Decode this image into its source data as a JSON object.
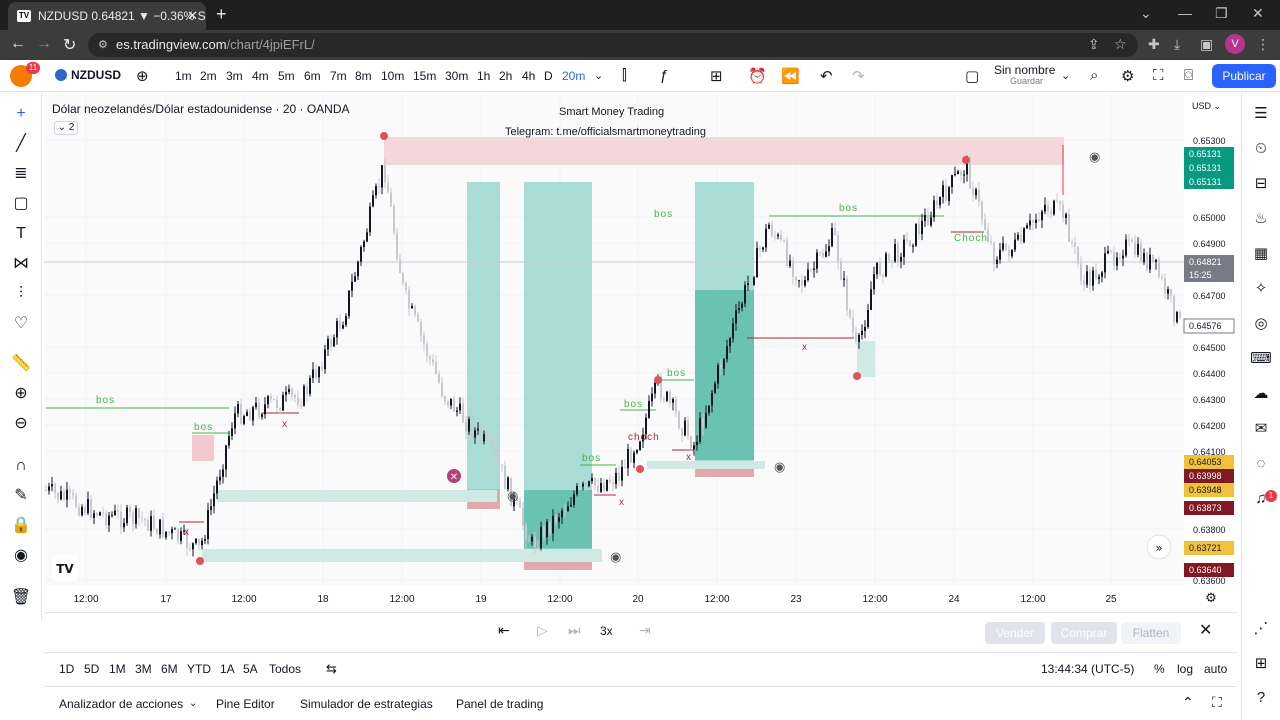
{
  "browser": {
    "tab_title": "NZDUSD 0.64821 ▼ −0.36% Sin",
    "url_host": "es.tradingview.com",
    "url_path": "/chart/4jpiEFrL/",
    "avatar": "V"
  },
  "toolbar": {
    "alerts_badge": "11",
    "symbol": "NZDUSD",
    "timeframes": [
      "1m",
      "2m",
      "3m",
      "4m",
      "5m",
      "6m",
      "7m",
      "8m",
      "10m",
      "15m",
      "30m",
      "1h",
      "2h",
      "4h",
      "D",
      "20m"
    ],
    "active_timeframe": "20m",
    "layout_name": "Sin nombre",
    "layout_status": "Guardar",
    "publish": "Publicar"
  },
  "chart": {
    "legend": "Dólar neozelandés/Dólar estadounidense · 20 · OANDA",
    "indicator_count": "2",
    "watermark_title": "Smart Money Trading",
    "watermark_sub": "Telegram: t.me/officialsmartmoneytrading",
    "currency": "USD",
    "price_ticks": [
      "0.65300",
      "0.65000",
      "0.64900",
      "0.64700",
      "0.64500",
      "0.64400",
      "0.64300",
      "0.64200",
      "0.64100",
      "0.63800",
      "0.63600"
    ],
    "time_ticks": [
      "12:00",
      "17",
      "12:00",
      "18",
      "12:00",
      "19",
      "12:00",
      "20",
      "12:00",
      "23",
      "12:00",
      "24",
      "12:00",
      "25"
    ],
    "price_badges": [
      {
        "label": "0.65131",
        "color": "#089981"
      },
      {
        "label": "0.65131",
        "color": "#089981"
      },
      {
        "label": "0.65131",
        "color": "#089981"
      },
      {
        "label": "0.64821",
        "color": "#787b86"
      },
      {
        "label": "15:25",
        "color": "#787b86"
      },
      {
        "label": "0.64576",
        "color": "#ffffff"
      },
      {
        "label": "0.64053",
        "color": "#f0c23a"
      },
      {
        "label": "0.63998",
        "color": "#801922"
      },
      {
        "label": "0.63948",
        "color": "#f0c23a"
      },
      {
        "label": "0.63873",
        "color": "#801922"
      },
      {
        "label": "0.63721",
        "color": "#f0c23a"
      },
      {
        "label": "0.63640",
        "color": "#801922"
      }
    ],
    "annotations": [
      "bos",
      "bos",
      "bos",
      "bos",
      "bos",
      "bos",
      "bos",
      "Choch",
      "choch",
      "x",
      "x",
      "x",
      "x",
      "x"
    ],
    "marker_badge": "1"
  },
  "replay": {
    "speed": "3x",
    "sell": "Vender",
    "buy": "Comprar",
    "flatten": "Flatten"
  },
  "bottom": {
    "ranges": [
      "1D",
      "5D",
      "1M",
      "3M",
      "6M",
      "YTD",
      "1A",
      "5A",
      "Todos"
    ],
    "clock": "13:44:34 (UTC-5)",
    "percent": "%",
    "log": "log",
    "auto": "auto"
  },
  "panels": [
    "Analizador de acciones",
    "Pine Editor",
    "Simulador de estrategias",
    "Panel de trading"
  ]
}
